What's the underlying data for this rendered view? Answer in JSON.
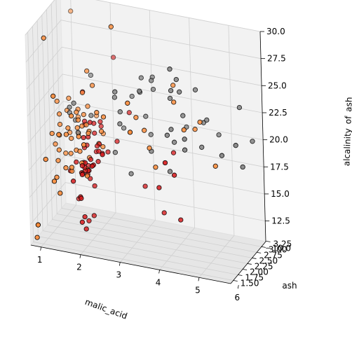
{
  "chart_data": {
    "type": "scatter",
    "projection": "3d",
    "xlabel": "malic_acid",
    "ylabel": "ash",
    "zlabel": "alcalinity_of_ash",
    "xlim": [
      0.74,
      5.8
    ],
    "ylim": [
      1.36,
      3.23
    ],
    "zlim": [
      10.6,
      30.0
    ],
    "xticks": [
      1,
      2,
      3,
      4,
      5,
      6
    ],
    "yticks": [
      1.5,
      1.75,
      2.0,
      2.25,
      2.5,
      2.75,
      3.0,
      3.25
    ],
    "zticks": [
      10.0,
      12.5,
      15.0,
      17.5,
      20.0,
      22.5,
      25.0,
      27.5,
      30.0
    ],
    "xtick_labels": [
      "1",
      "2",
      "3",
      "4",
      "5",
      "6"
    ],
    "ytick_labels": [
      "1.50",
      "1.75",
      "2.00",
      "2.25",
      "2.50",
      "2.75",
      "3.00",
      "3.25"
    ],
    "ztick_labels": [
      "10.0",
      "12.5",
      "15.0",
      "17.5",
      "20.0",
      "22.5",
      "25.0",
      "27.5",
      "30.0"
    ],
    "grid": true,
    "colors": {
      "red": "#d7191c",
      "orange": "#fd8d3c",
      "gray": "#808080"
    },
    "series": [
      {
        "color": "#d7191c",
        "x": [
          1.71,
          1.78,
          2.36,
          1.95,
          2.59,
          1.76,
          1.87,
          2.15,
          1.64,
          1.35,
          2.16,
          1.48,
          1.73,
          1.73,
          1.87,
          1.81,
          1.92,
          1.57,
          1.59,
          3.1,
          1.63,
          3.8,
          1.86,
          1.6,
          1.81,
          2.05,
          1.77,
          1.72,
          1.9,
          1.68,
          1.5,
          1.66,
          1.83,
          1.53,
          1.8,
          1.81,
          1.64,
          1.65,
          1.5,
          3.59,
          1.71,
          3.84,
          1.89,
          3.98,
          1.77,
          4.04,
          3.59,
          1.68,
          2.02,
          1.73,
          1.73,
          1.65,
          1.75,
          1.9,
          1.67,
          1.73,
          1.7,
          1.97,
          1.43
        ],
        "y": [
          2.43,
          2.14,
          2.67,
          2.5,
          2.87,
          2.45,
          2.45,
          2.61,
          2.17,
          2.27,
          2.3,
          2.32,
          2.41,
          2.39,
          2.38,
          2.7,
          2.72,
          2.62,
          2.48,
          2.56,
          2.28,
          2.65,
          2.36,
          2.52,
          2.61,
          3.22,
          2.62,
          2.14,
          2.8,
          2.21,
          2.7,
          2.36,
          2.36,
          2.7,
          2.65,
          2.41,
          2.84,
          2.55,
          2.1,
          2.51,
          2.31,
          2.12,
          2.59,
          2.29,
          2.1,
          2.44,
          2.28,
          2.12,
          2.4,
          2.27,
          2.04,
          2.6,
          2.42,
          2.68,
          2.25,
          2.46,
          2.3,
          2.68,
          2.5
        ],
        "z": [
          15.6,
          11.2,
          18.6,
          16.8,
          21.0,
          15.2,
          14.6,
          17.6,
          14.0,
          16.0,
          18.0,
          16.8,
          16.0,
          11.4,
          12.0,
          17.2,
          20.0,
          20.0,
          16.5,
          15.2,
          16.0,
          18.6,
          16.6,
          17.8,
          20.0,
          25.0,
          16.1,
          17.0,
          19.4,
          16.0,
          22.5,
          19.1,
          17.2,
          19.5,
          19.0,
          20.5,
          15.5,
          18.0,
          15.5,
          13.2,
          16.2,
          18.8,
          18.0,
          17.4,
          12.4,
          13.0,
          16.0,
          14.0,
          18.0,
          17.0,
          12.0,
          16.0,
          16.0,
          18.0,
          16.0,
          19.0,
          16.5,
          17.2,
          13.0
        ]
      },
      {
        "color": "#fd8d3c",
        "x": [
          0.94,
          1.1,
          1.36,
          1.25,
          1.13,
          1.45,
          1.21,
          1.01,
          1.17,
          0.94,
          1.19,
          1.61,
          1.51,
          1.66,
          1.67,
          1.09,
          1.88,
          3.17,
          2.13,
          0.89,
          1.81,
          4.43,
          1.07,
          1.21,
          1.33,
          2.46,
          1.41,
          1.68,
          3.24,
          1.53,
          1.6,
          1.61,
          2.08,
          1.51,
          4.3,
          1.35,
          2.99,
          2.31,
          3.55,
          1.24,
          2.0,
          1.73,
          1.67,
          1.87,
          1.41,
          1.73,
          2.12,
          0.74,
          1.39,
          1.35,
          3.03,
          1.72,
          1.13,
          3.86,
          0.99,
          1.39,
          3.37,
          1.09,
          1.01,
          1.19,
          1.72,
          4.61,
          1.85,
          1.63,
          1.9,
          3.98,
          1.88,
          0.98,
          5.04,
          1.52,
          1.33,
          1.59,
          1.53
        ],
        "y": [
          1.36,
          2.16,
          2.02,
          1.92,
          2.16,
          2.53,
          2.56,
          1.7,
          1.92,
          2.36,
          1.75,
          2.21,
          2.67,
          2.24,
          2.6,
          2.3,
          1.92,
          1.71,
          2.4,
          2.0,
          2.2,
          2.51,
          2.32,
          2.58,
          2.24,
          2.31,
          2.62,
          2.46,
          2.3,
          2.32,
          2.42,
          2.26,
          2.22,
          2.28,
          2.2,
          2.74,
          1.98,
          2.1,
          2.21,
          1.7,
          2.7,
          2.92,
          2.5,
          2.19,
          1.98,
          2.5,
          2.36,
          1.7,
          2.27,
          2.32,
          2.32,
          2.5,
          2.5,
          2.59,
          3.23,
          2.28,
          2.28,
          2.32,
          2.36,
          2.5,
          1.99,
          2.41,
          2.27,
          2.46,
          2.4,
          2.36,
          2.7,
          2.12,
          2.28,
          2.0,
          1.75,
          1.9,
          2.29
        ],
        "z": [
          12.6,
          17.0,
          16.8,
          20.0,
          18.0,
          19.0,
          22.0,
          18.0,
          16.0,
          18.0,
          16.0,
          21.0,
          22.5,
          17.0,
          21.5,
          21.0,
          19.5,
          22.0,
          18.5,
          28.5,
          16.0,
          21.5,
          19.0,
          18.8,
          20.0,
          30.0,
          21.0,
          16.0,
          21.0,
          20.0,
          20.0,
          18.0,
          22.0,
          18.0,
          22.0,
          20.0,
          24.0,
          22.0,
          18.0,
          24.0,
          19.0,
          20.0,
          20.0,
          20.0,
          20.0,
          17.0,
          20.0,
          10.6,
          16.0,
          17.5,
          22.0,
          25.0,
          17.0,
          25.0,
          28.5,
          19.0,
          19.5,
          20.0,
          22.0,
          21.0,
          20.0,
          22.5,
          20.0,
          21.0,
          24.0,
          24.0,
          18.0,
          19.5,
          19.0,
          17.0,
          15.0,
          22.0,
          21.5
        ]
      },
      {
        "color": "#808080",
        "x": [
          1.29,
          3.3,
          5.8,
          4.95,
          5.51,
          1.29,
          4.12,
          3.03,
          1.68,
          4.28,
          1.35,
          2.51,
          4.6,
          3.83,
          2.55,
          4.03,
          3.84,
          4.43,
          4.72,
          2.4,
          5.65,
          3.91,
          4.28,
          2.59,
          4.1,
          1.53,
          2.83,
          5.51,
          3.91,
          1.41,
          4.6,
          2.76,
          3.9,
          3.37,
          3.91,
          3.03,
          5.19,
          4.12,
          3.12,
          3.83,
          2.96,
          3.26,
          2.4,
          3.3,
          1.81,
          3.26,
          2.58
        ],
        "y": [
          2.43,
          2.7,
          2.68,
          2.68,
          2.64,
          2.43,
          2.38,
          2.64,
          2.78,
          2.26,
          2.6,
          2.32,
          2.62,
          2.48,
          2.65,
          2.42,
          2.36,
          2.58,
          2.54,
          2.48,
          2.45,
          2.48,
          2.26,
          2.37,
          2.74,
          2.35,
          2.4,
          2.4,
          2.33,
          2.41,
          2.49,
          2.69,
          2.36,
          2.38,
          2.37,
          2.53,
          2.32,
          2.53,
          2.64,
          2.28,
          2.7,
          2.6,
          2.52,
          2.61,
          2.48,
          2.75,
          2.42
        ],
        "z": [
          21.0,
          24.0,
          21.0,
          21.0,
          24.0,
          21.5,
          25.0,
          25.0,
          24.0,
          21.0,
          20.0,
          24.0,
          22.0,
          24.0,
          20.0,
          26.0,
          17.5,
          25.0,
          22.5,
          18.0,
          19.0,
          20.0,
          20.0,
          21.0,
          21.0,
          19.5,
          16.5,
          21.0,
          21.5,
          22.0,
          20.0,
          23.0,
          27.0,
          19.0,
          25.0,
          24.0,
          20.0,
          22.5,
          21.5,
          21.0,
          23.5,
          20.0,
          23.0,
          25.0,
          21.0,
          25.0,
          22.0
        ]
      }
    ]
  }
}
